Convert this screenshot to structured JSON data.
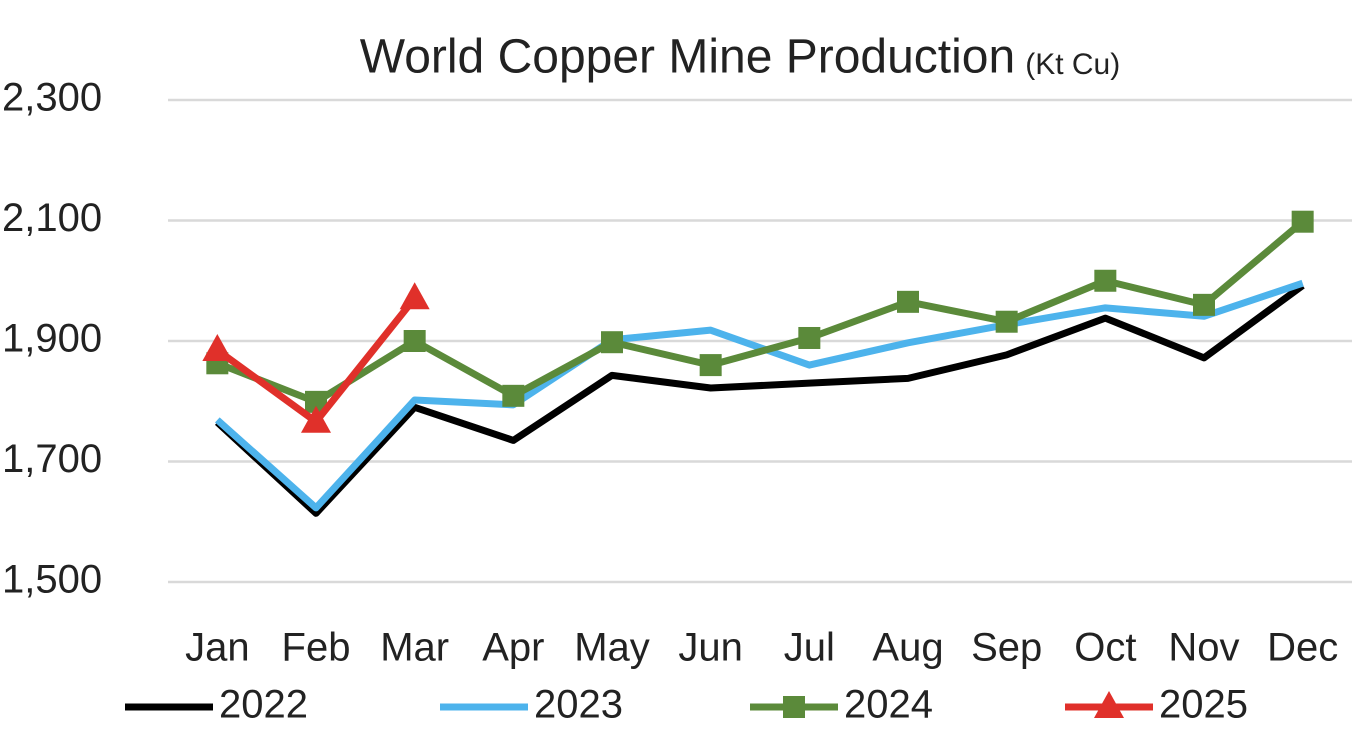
{
  "chart_data": {
    "type": "line",
    "title": "World Copper Mine Production",
    "subtitle": "(Kt Cu)",
    "categories": [
      "Jan",
      "Feb",
      "Mar",
      "Apr",
      "May",
      "Jun",
      "Jul",
      "Aug",
      "Sep",
      "Oct",
      "Nov",
      "Dec"
    ],
    "series": [
      {
        "name": "2022",
        "color": "#000000",
        "marker": null,
        "values": [
          1765,
          1614,
          1790,
          1735,
          1843,
          1822,
          1830,
          1838,
          1877,
          1938,
          1872,
          1992
        ]
      },
      {
        "name": "2023",
        "color": "#4db3ec",
        "marker": null,
        "values": [
          1769,
          1623,
          1802,
          1794,
          1902,
          1918,
          1860,
          1897,
          1927,
          1955,
          1941,
          1996
        ]
      },
      {
        "name": "2024",
        "color": "#5b8a3a",
        "marker": "square",
        "values": [
          1863,
          1799,
          1900,
          1809,
          1898,
          1860,
          1905,
          1965,
          1932,
          2000,
          1960,
          2098
        ]
      },
      {
        "name": "2025",
        "color": "#e0302a",
        "marker": "triangle",
        "values": [
          1885,
          1766,
          1971,
          null,
          null,
          null,
          null,
          null,
          null,
          null,
          null,
          null
        ]
      }
    ],
    "ylim": [
      1500,
      2300
    ],
    "yticks": [
      {
        "value": 1500,
        "label": "1,500"
      },
      {
        "value": 1700,
        "label": "1,700"
      },
      {
        "value": 1900,
        "label": "1,900"
      },
      {
        "value": 2100,
        "label": "2,100"
      },
      {
        "value": 2300,
        "label": "2,300"
      }
    ],
    "grid": true,
    "legend": "bottom"
  }
}
